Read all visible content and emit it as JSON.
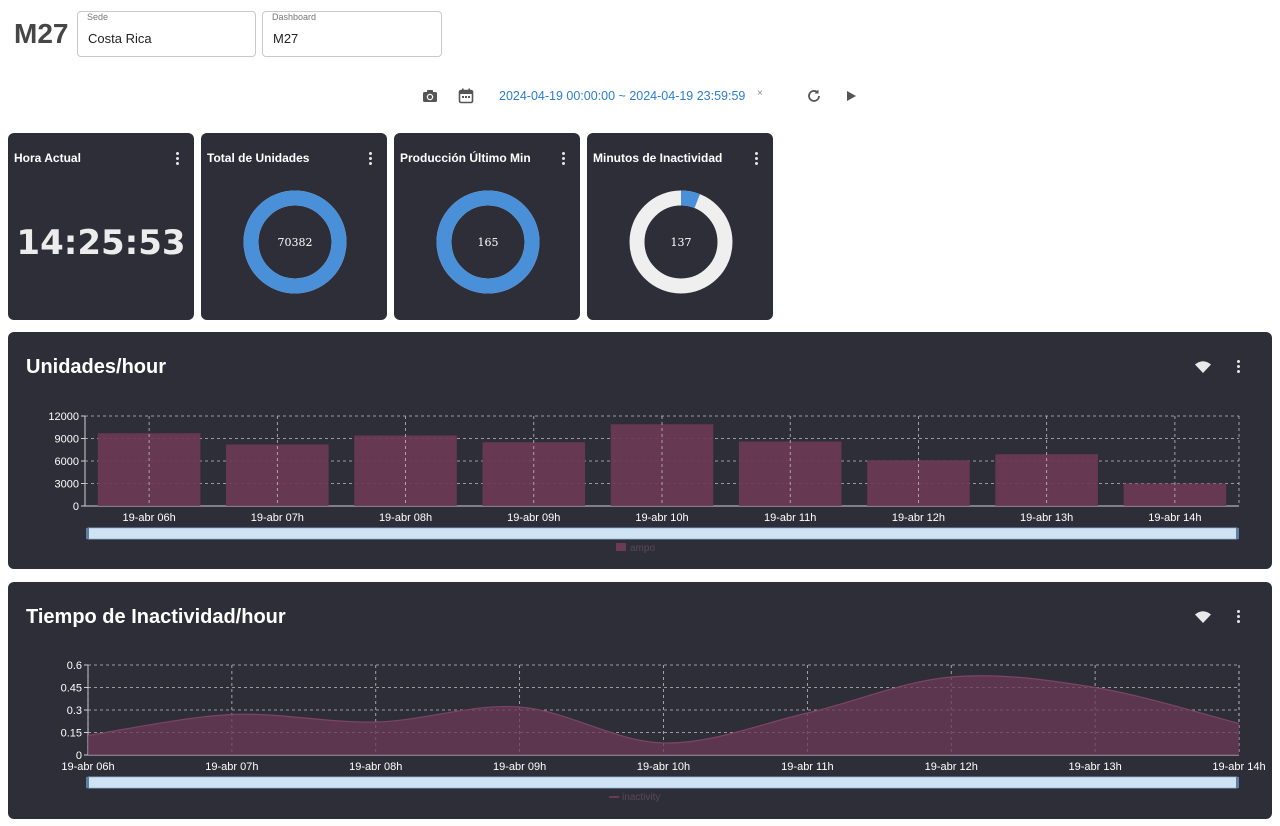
{
  "header": {
    "title": "M27",
    "sede": {
      "label": "Sede",
      "value": "Costa Rica"
    },
    "dashboard": {
      "label": "Dashboard",
      "value": "M27"
    }
  },
  "toolbar": {
    "date_range": "2024-04-19 00:00:00 ~ 2024-04-19 23:59:59",
    "clear": "×"
  },
  "stats": {
    "hora_actual": {
      "title": "Hora Actual",
      "value": "14:25:53"
    },
    "total_unidades": {
      "title": "Total de Unidades",
      "value": "70382",
      "fraction": 1.0
    },
    "produccion_ultimo_min": {
      "title": "Producción Último Min",
      "value": "165",
      "fraction": 1.0
    },
    "minutos_inactividad": {
      "title": "Minutos de Inactividad",
      "value": "137",
      "fraction": 0.06
    }
  },
  "colors": {
    "panel_bg": "#2e2e38",
    "donut_blue": "#4a90d9",
    "donut_track": "#efefef",
    "bar_fill": "#6b3a55",
    "area_fill": "#6b3a55",
    "slider": "#cfe3f3"
  },
  "chart_data": [
    {
      "type": "bar",
      "title": "Unidades/hour",
      "categories": [
        "19-abr 06h",
        "19-abr 07h",
        "19-abr 08h",
        "19-abr 09h",
        "19-abr 10h",
        "19-abr 11h",
        "19-abr 12h",
        "19-abr 13h",
        "19-abr 14h"
      ],
      "series": [
        {
          "name": "ampo",
          "values": [
            9700,
            8200,
            9400,
            8500,
            10900,
            8600,
            6100,
            6900,
            3000
          ]
        }
      ],
      "ylim": [
        0,
        12000
      ],
      "yticks": [
        "0",
        "3000",
        "6000",
        "9000",
        "12000"
      ],
      "grid": true,
      "legend": "bottom"
    },
    {
      "type": "area",
      "title": "Tiempo de Inactividad/hour",
      "categories": [
        "19-abr 06h",
        "19-abr 07h",
        "19-abr 08h",
        "19-abr 09h",
        "19-abr 10h",
        "19-abr 11h",
        "19-abr 12h",
        "19-abr 13h",
        "19-abr 14h"
      ],
      "series": [
        {
          "name": "inactivity",
          "values": [
            0.13,
            0.27,
            0.22,
            0.32,
            0.08,
            0.28,
            0.52,
            0.45,
            0.21
          ]
        }
      ],
      "ylim": [
        0,
        0.6
      ],
      "yticks": [
        "0",
        "0.15",
        "0.3",
        "0.45",
        "0.6"
      ],
      "grid": true,
      "legend": "bottom"
    }
  ]
}
